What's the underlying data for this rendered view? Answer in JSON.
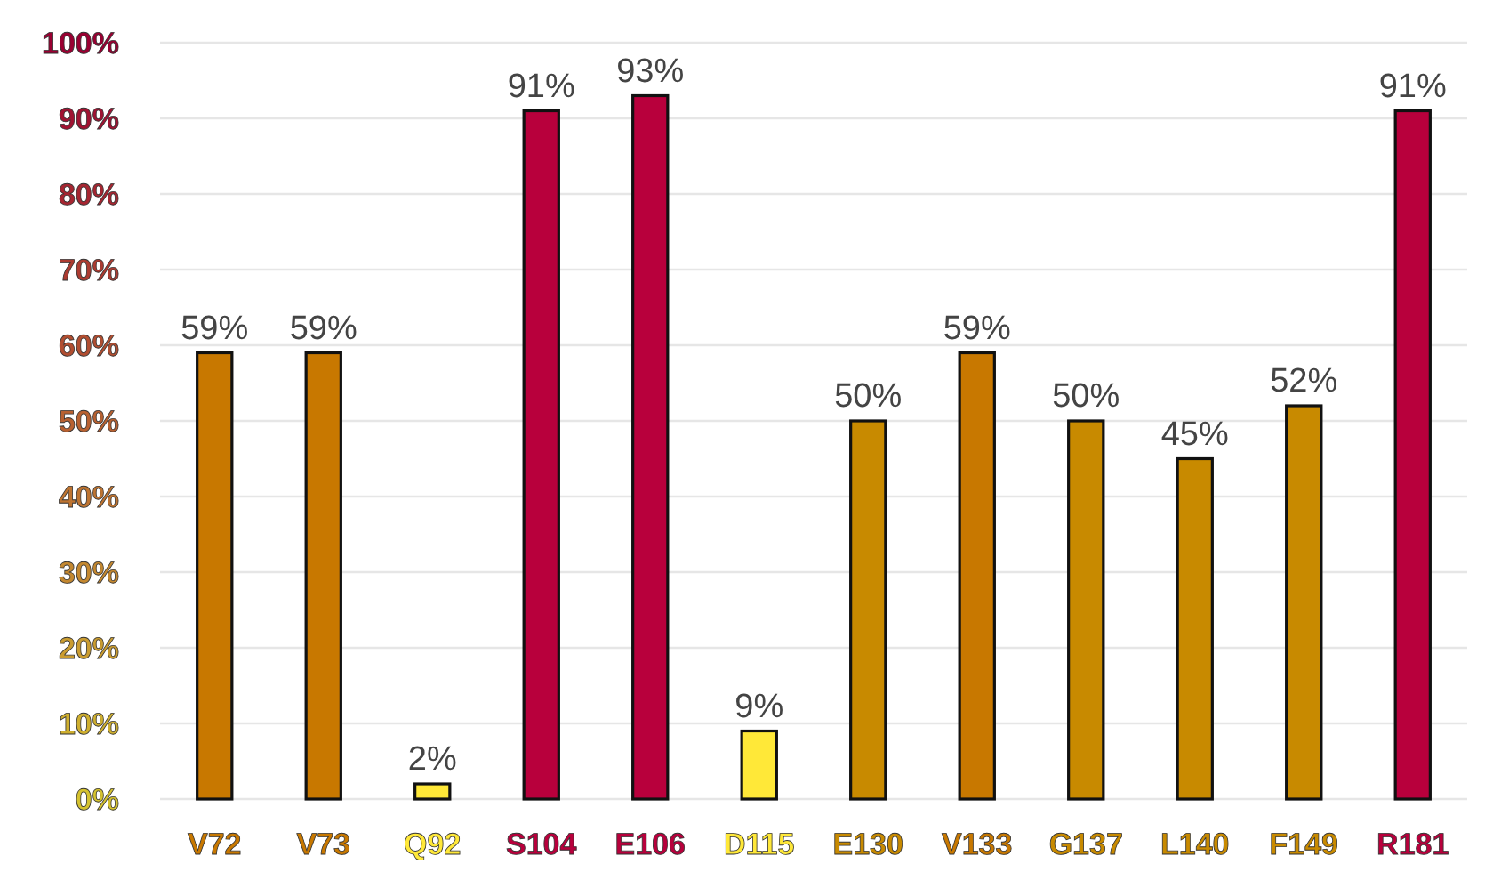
{
  "chart_data": {
    "type": "bar",
    "categories": [
      "V72",
      "V73",
      "Q92",
      "S104",
      "E106",
      "D115",
      "E130",
      "V133",
      "G137",
      "L140",
      "F149",
      "R181"
    ],
    "values": [
      59,
      59,
      2,
      91,
      93,
      9,
      50,
      59,
      50,
      45,
      52,
      91
    ],
    "colors": [
      "#c87800",
      "#c87800",
      "#ffe838",
      "#b8003c",
      "#b8003c",
      "#ffe838",
      "#c88a00",
      "#c87800",
      "#c88a00",
      "#c88a00",
      "#c88a00",
      "#b8003c"
    ],
    "ylim": [
      0,
      100
    ],
    "yticks": [
      {
        "value": 0,
        "label": "0%"
      },
      {
        "value": 10,
        "label": "10%"
      },
      {
        "value": 20,
        "label": "20%"
      },
      {
        "value": 30,
        "label": "30%"
      },
      {
        "value": 40,
        "label": "40%"
      },
      {
        "value": 50,
        "label": "50%"
      },
      {
        "value": 60,
        "label": "60%"
      },
      {
        "value": 70,
        "label": "70%"
      },
      {
        "value": 80,
        "label": "80%"
      },
      {
        "value": 90,
        "label": "90%"
      },
      {
        "value": 100,
        "label": "100%"
      }
    ],
    "value_labels": [
      "59%",
      "59%",
      "2%",
      "91%",
      "93%",
      "9%",
      "50%",
      "59%",
      "50%",
      "45%",
      "52%",
      "91%"
    ],
    "grid": "y"
  }
}
